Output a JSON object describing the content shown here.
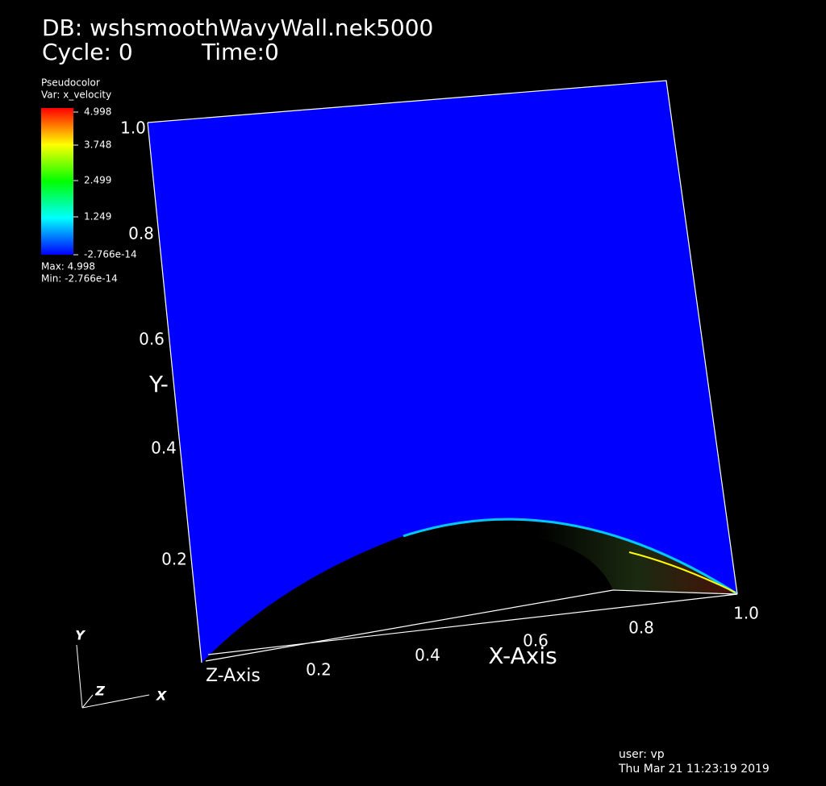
{
  "header": {
    "database": "DB: wshsmoothWavyWall.nek5000",
    "cycle": "Cycle: 0",
    "time": "Time:0"
  },
  "legend": {
    "plot": "Pseudocolor",
    "variable": "Var: x_velocity",
    "ticks": [
      "4.998",
      "3.748",
      "2.499",
      "1.249",
      "-2.766e-14"
    ],
    "max": "Max:  4.998",
    "min": "Min: -2.766e-14"
  },
  "axes": {
    "y_ticks": [
      "1.0",
      "0.8",
      "0.6",
      "0.4",
      "0.2"
    ],
    "y_title": "Y-",
    "x_ticks": [
      "0.2",
      "0.4",
      "0.6",
      "0.8",
      "1.0"
    ],
    "x_title": "X-Axis",
    "z_title": "Z-Axis"
  },
  "triad": {
    "y": "Y",
    "z": "Z",
    "x": "X"
  },
  "footer": {
    "user": "user: vp",
    "date": "Thu Mar 21 11:23:19 2019"
  }
}
